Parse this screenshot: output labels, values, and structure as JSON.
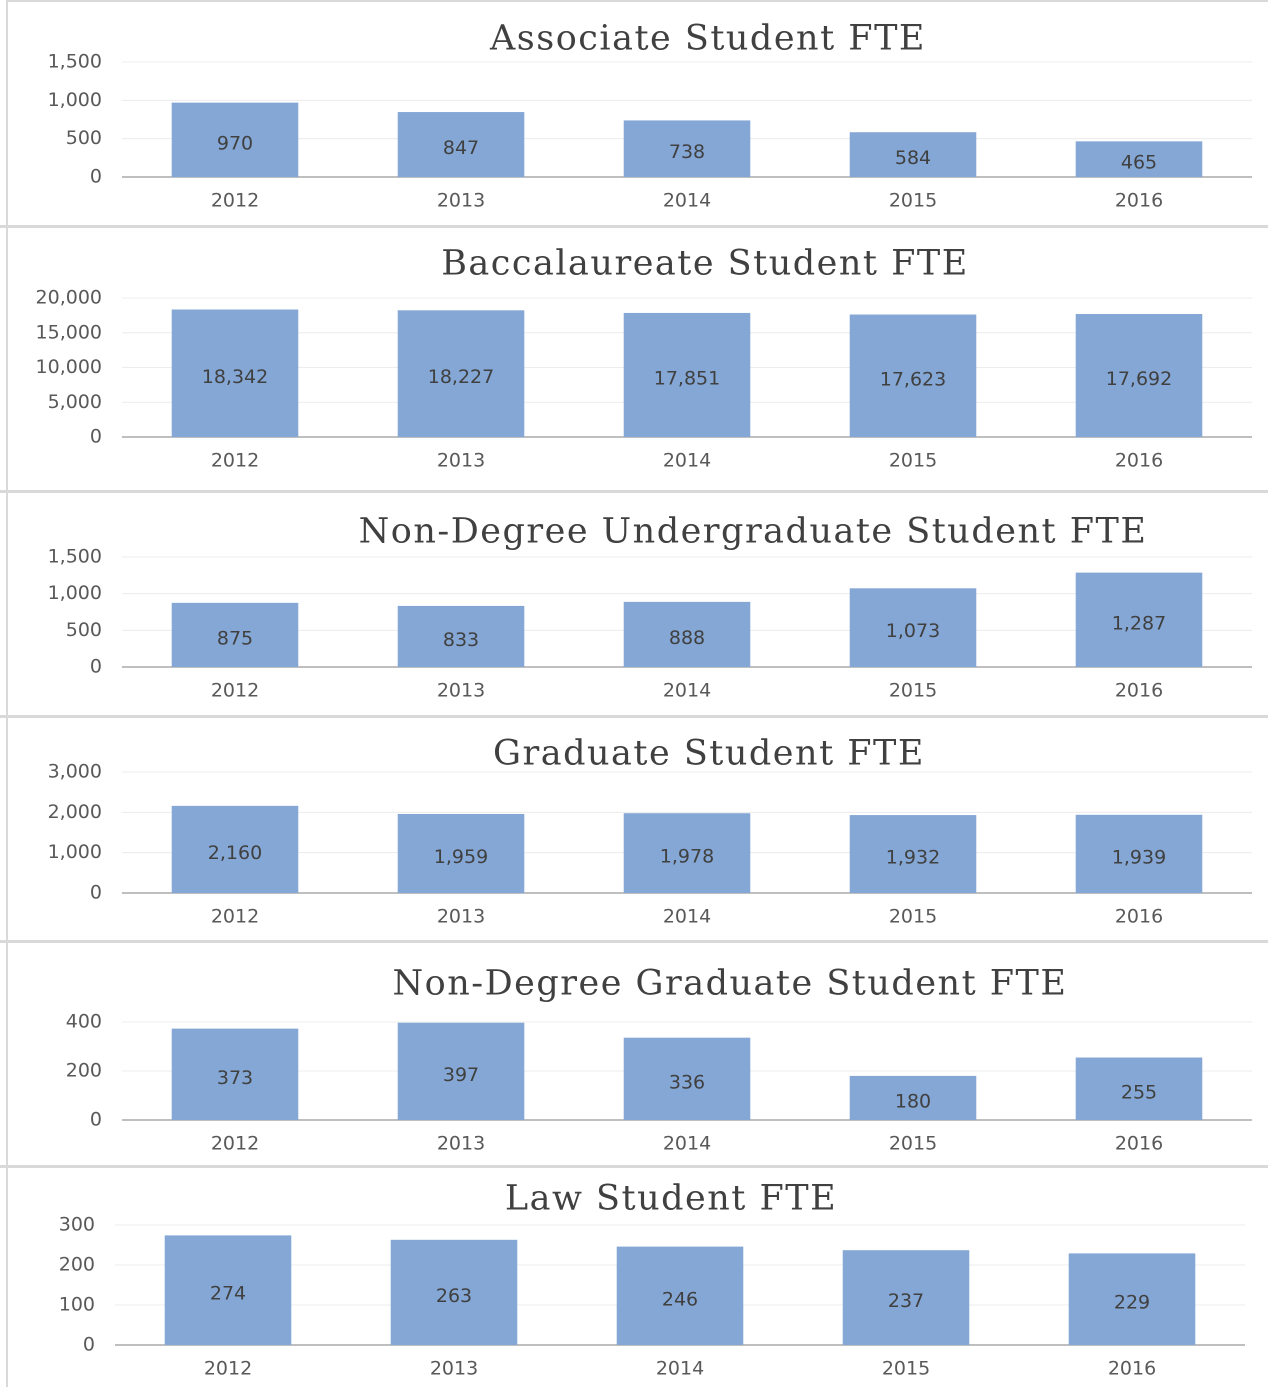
{
  "chart_data": [
    {
      "type": "bar",
      "title": "Associate Student FTE",
      "categories": [
        "2012",
        "2013",
        "2014",
        "2015",
        "2016"
      ],
      "values": [
        970,
        847,
        738,
        584,
        465
      ],
      "color": "#84a7d5",
      "ylim": [
        0,
        1500
      ],
      "yticks": [
        0,
        500,
        {
          "value": 1000,
          "label": "1,000"
        },
        {
          "value": 1500,
          "label": "1,500"
        }
      ],
      "grid": true
    },
    {
      "type": "bar",
      "title": "Baccalaureate Student FTE",
      "categories": [
        "2012",
        "2013",
        "2014",
        "2015",
        "2016"
      ],
      "values": [
        18342,
        18227,
        17851,
        17623,
        17692
      ],
      "value_labels": [
        "18,342",
        "18,227",
        "17,851",
        "17,623",
        "17,692"
      ],
      "color": "#84a7d5",
      "ylim": [
        0,
        20000
      ],
      "yticks": [
        0,
        {
          "value": 5000,
          "label": "5,000"
        },
        {
          "value": 10000,
          "label": "10,000"
        },
        {
          "value": 15000,
          "label": "15,000"
        },
        {
          "value": 20000,
          "label": "20,000"
        }
      ],
      "grid": true
    },
    {
      "type": "bar",
      "title": "Non-Degree Undergraduate Student FTE",
      "categories": [
        "2012",
        "2013",
        "2014",
        "2015",
        "2016"
      ],
      "values": [
        875,
        833,
        888,
        1073,
        1287
      ],
      "value_labels": [
        "875",
        "833",
        "888",
        "1,073",
        "1,287"
      ],
      "color": "#84a7d5",
      "ylim": [
        0,
        1500
      ],
      "yticks": [
        0,
        500,
        {
          "value": 1000,
          "label": "1,000"
        },
        {
          "value": 1500,
          "label": "1,500"
        }
      ],
      "grid": true
    },
    {
      "type": "bar",
      "title": "Graduate Student FTE",
      "categories": [
        "2012",
        "2013",
        "2014",
        "2015",
        "2016"
      ],
      "values": [
        2160,
        1959,
        1978,
        1932,
        1939
      ],
      "value_labels": [
        "2,160",
        "1,959",
        "1,978",
        "1,932",
        "1,939"
      ],
      "color": "#84a7d5",
      "ylim": [
        0,
        3000
      ],
      "yticks": [
        0,
        {
          "value": 1000,
          "label": "1,000"
        },
        {
          "value": 2000,
          "label": "2,000"
        },
        {
          "value": 3000,
          "label": "3,000"
        }
      ],
      "grid": true
    },
    {
      "type": "bar",
      "title": "Non-Degree Graduate Student FTE",
      "categories": [
        "2012",
        "2013",
        "2014",
        "2015",
        "2016"
      ],
      "values": [
        373,
        397,
        336,
        180,
        255
      ],
      "color": "#84a7d5",
      "ylim": [
        0,
        400
      ],
      "yticks": [
        0,
        200,
        400
      ],
      "grid": true
    },
    {
      "type": "bar",
      "title": "Law Student FTE",
      "categories": [
        "2012",
        "2013",
        "2014",
        "2015",
        "2016"
      ],
      "values": [
        274,
        263,
        246,
        237,
        229
      ],
      "color": "#84a7d5",
      "ylim": [
        0,
        300
      ],
      "yticks": [
        0,
        100,
        200,
        300
      ],
      "grid": true
    }
  ]
}
